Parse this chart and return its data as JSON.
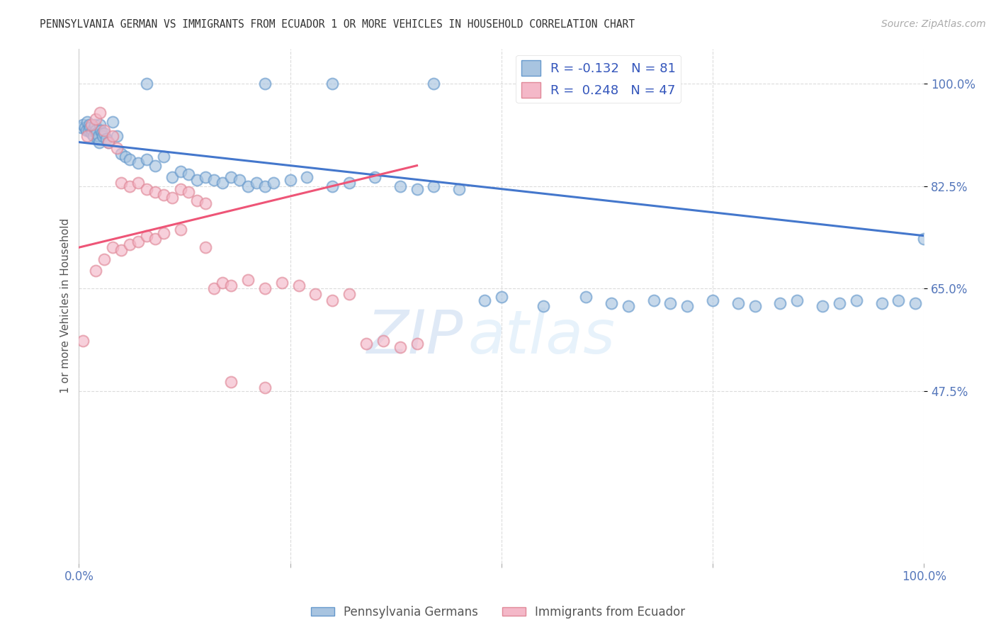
{
  "title": "PENNSYLVANIA GERMAN VS IMMIGRANTS FROM ECUADOR 1 OR MORE VEHICLES IN HOUSEHOLD CORRELATION CHART",
  "source": "Source: ZipAtlas.com",
  "ylabel": "1 or more Vehicles in Household",
  "ytick_labels": [
    "100.0%",
    "82.5%",
    "65.0%",
    "47.5%"
  ],
  "ytick_values": [
    100.0,
    82.5,
    65.0,
    47.5
  ],
  "legend_entry1": "R = -0.132   N = 81",
  "legend_entry2": "R =  0.248   N = 47",
  "legend_label1": "Pennsylvania Germans",
  "legend_label2": "Immigrants from Ecuador",
  "watermark_zip": "ZIP",
  "watermark_atlas": "atlas",
  "blue_color": "#A8C4E0",
  "blue_edge_color": "#6699CC",
  "pink_color": "#F4B8C8",
  "pink_edge_color": "#E08898",
  "blue_line_color": "#4477CC",
  "pink_line_color": "#EE5577",
  "blue_scatter_x": [
    0.3,
    0.5,
    0.7,
    0.9,
    1.0,
    1.1,
    1.2,
    1.3,
    1.5,
    1.6,
    1.7,
    1.8,
    1.9,
    2.0,
    2.1,
    2.2,
    2.3,
    2.4,
    2.5,
    2.6,
    2.7,
    2.8,
    3.0,
    3.2,
    3.5,
    4.0,
    4.5,
    5.0,
    5.5,
    6.0,
    7.0,
    8.0,
    9.0,
    10.0,
    11.0,
    12.0,
    13.0,
    14.0,
    15.0,
    16.0,
    17.0,
    18.0,
    19.0,
    20.0,
    21.0,
    22.0,
    23.0,
    25.0,
    27.0,
    30.0,
    32.0,
    35.0,
    38.0,
    40.0,
    42.0,
    45.0,
    48.0,
    50.0,
    55.0,
    60.0,
    63.0,
    65.0,
    68.0,
    70.0,
    72.0,
    75.0,
    78.0,
    80.0,
    83.0,
    85.0,
    88.0,
    90.0,
    92.0,
    95.0,
    97.0,
    99.0,
    100.0,
    8.0,
    22.0,
    30.0,
    42.0
  ],
  "blue_scatter_y": [
    92.5,
    93.0,
    92.5,
    92.0,
    93.5,
    92.0,
    93.0,
    92.5,
    91.5,
    92.0,
    91.0,
    92.5,
    93.0,
    92.0,
    91.5,
    90.5,
    91.0,
    90.0,
    93.0,
    92.0,
    91.5,
    91.0,
    91.5,
    90.5,
    90.0,
    93.5,
    91.0,
    88.0,
    87.5,
    87.0,
    86.5,
    87.0,
    86.0,
    87.5,
    84.0,
    85.0,
    84.5,
    83.5,
    84.0,
    83.5,
    83.0,
    84.0,
    83.5,
    82.5,
    83.0,
    82.5,
    83.0,
    83.5,
    84.0,
    82.5,
    83.0,
    84.0,
    82.5,
    82.0,
    82.5,
    82.0,
    63.0,
    63.5,
    62.0,
    63.5,
    62.5,
    62.0,
    63.0,
    62.5,
    62.0,
    63.0,
    62.5,
    62.0,
    62.5,
    63.0,
    62.0,
    62.5,
    63.0,
    62.5,
    63.0,
    62.5,
    73.5,
    100.0,
    100.0,
    100.0,
    100.0
  ],
  "pink_scatter_x": [
    0.5,
    1.0,
    1.5,
    2.0,
    2.5,
    3.0,
    3.5,
    4.0,
    4.5,
    5.0,
    6.0,
    7.0,
    8.0,
    9.0,
    10.0,
    11.0,
    12.0,
    13.0,
    14.0,
    15.0,
    16.0,
    17.0,
    18.0,
    20.0,
    22.0,
    24.0,
    26.0,
    28.0,
    30.0,
    32.0,
    34.0,
    36.0,
    38.0,
    40.0,
    2.0,
    3.0,
    4.0,
    5.0,
    6.0,
    7.0,
    8.0,
    9.0,
    10.0,
    12.0,
    15.0,
    18.0,
    22.0
  ],
  "pink_scatter_y": [
    56.0,
    91.0,
    93.0,
    94.0,
    95.0,
    92.0,
    90.0,
    91.0,
    89.0,
    83.0,
    82.5,
    83.0,
    82.0,
    81.5,
    81.0,
    80.5,
    82.0,
    81.5,
    80.0,
    79.5,
    65.0,
    66.0,
    65.5,
    66.5,
    65.0,
    66.0,
    65.5,
    64.0,
    63.0,
    64.0,
    55.5,
    56.0,
    55.0,
    55.5,
    68.0,
    70.0,
    72.0,
    71.5,
    72.5,
    73.0,
    74.0,
    73.5,
    74.5,
    75.0,
    72.0,
    49.0,
    48.0
  ],
  "blue_trend_x0": 0.0,
  "blue_trend_y0": 90.0,
  "blue_trend_x1": 100.0,
  "blue_trend_y1": 74.0,
  "pink_trend_x0": 0.0,
  "pink_trend_y0": 72.0,
  "pink_trend_x1": 40.0,
  "pink_trend_y1": 86.0,
  "xlim": [
    0,
    100
  ],
  "ylim": [
    18,
    106
  ],
  "scatter_size": 130,
  "scatter_alpha": 0.65,
  "scatter_lw": 1.5
}
